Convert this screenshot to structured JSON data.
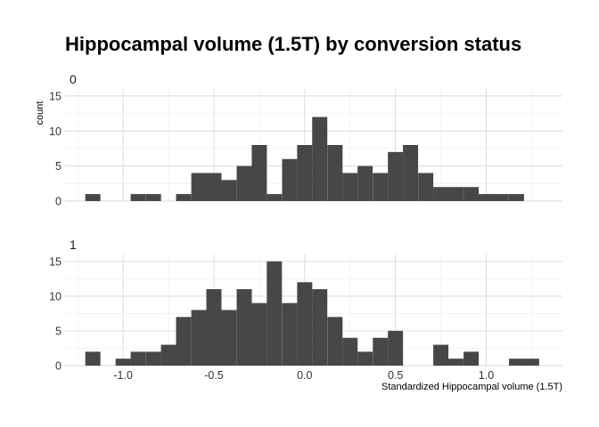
{
  "chart_data": {
    "type": "bar",
    "title": "Hippocampal volume (1.5T) by conversion status",
    "xlabel": "Standardized Hippocampal volume (1.5T)",
    "ylabel": "count",
    "xlim": [
      -1.32,
      1.42
    ],
    "ylim": [
      0,
      16
    ],
    "x_ticks": [
      -1.0,
      -0.5,
      0.0,
      0.5,
      1.0
    ],
    "x_tick_labels": [
      "-1.0",
      "-0.5",
      "0.0",
      "0.5",
      "1.0"
    ],
    "y_ticks": [
      0,
      5,
      10,
      15
    ],
    "y_tick_labels": [
      "0",
      "5",
      "10",
      "15"
    ],
    "bin_width": 0.0833,
    "grid": true,
    "facets": [
      {
        "label": "0",
        "bins": [
          {
            "x": -1.167,
            "count": 1
          },
          {
            "x": -0.917,
            "count": 1
          },
          {
            "x": -0.833,
            "count": 1
          },
          {
            "x": -0.667,
            "count": 1
          },
          {
            "x": -0.583,
            "count": 4
          },
          {
            "x": -0.5,
            "count": 4
          },
          {
            "x": -0.417,
            "count": 3
          },
          {
            "x": -0.333,
            "count": 5
          },
          {
            "x": -0.25,
            "count": 8
          },
          {
            "x": -0.167,
            "count": 1
          },
          {
            "x": -0.083,
            "count": 6
          },
          {
            "x": 0.0,
            "count": 8
          },
          {
            "x": 0.083,
            "count": 12
          },
          {
            "x": 0.167,
            "count": 8
          },
          {
            "x": 0.25,
            "count": 4
          },
          {
            "x": 0.333,
            "count": 5
          },
          {
            "x": 0.417,
            "count": 4
          },
          {
            "x": 0.5,
            "count": 7
          },
          {
            "x": 0.583,
            "count": 8
          },
          {
            "x": 0.667,
            "count": 4
          },
          {
            "x": 0.75,
            "count": 2
          },
          {
            "x": 0.833,
            "count": 2
          },
          {
            "x": 0.917,
            "count": 2
          },
          {
            "x": 1.0,
            "count": 1
          },
          {
            "x": 1.083,
            "count": 1
          },
          {
            "x": 1.167,
            "count": 1
          }
        ]
      },
      {
        "label": "1",
        "bins": [
          {
            "x": -1.167,
            "count": 2
          },
          {
            "x": -1.0,
            "count": 1
          },
          {
            "x": -0.917,
            "count": 2
          },
          {
            "x": -0.833,
            "count": 2
          },
          {
            "x": -0.75,
            "count": 3
          },
          {
            "x": -0.667,
            "count": 7
          },
          {
            "x": -0.583,
            "count": 8
          },
          {
            "x": -0.5,
            "count": 11
          },
          {
            "x": -0.417,
            "count": 8
          },
          {
            "x": -0.333,
            "count": 11
          },
          {
            "x": -0.25,
            "count": 9
          },
          {
            "x": -0.167,
            "count": 15
          },
          {
            "x": -0.083,
            "count": 9
          },
          {
            "x": 0.0,
            "count": 12
          },
          {
            "x": 0.083,
            "count": 11
          },
          {
            "x": 0.167,
            "count": 7
          },
          {
            "x": 0.25,
            "count": 4
          },
          {
            "x": 0.333,
            "count": 2
          },
          {
            "x": 0.417,
            "count": 4
          },
          {
            "x": 0.5,
            "count": 5
          },
          {
            "x": 0.75,
            "count": 3
          },
          {
            "x": 0.833,
            "count": 1
          },
          {
            "x": 0.917,
            "count": 2
          },
          {
            "x": 1.167,
            "count": 1
          },
          {
            "x": 1.25,
            "count": 1
          }
        ]
      }
    ]
  }
}
